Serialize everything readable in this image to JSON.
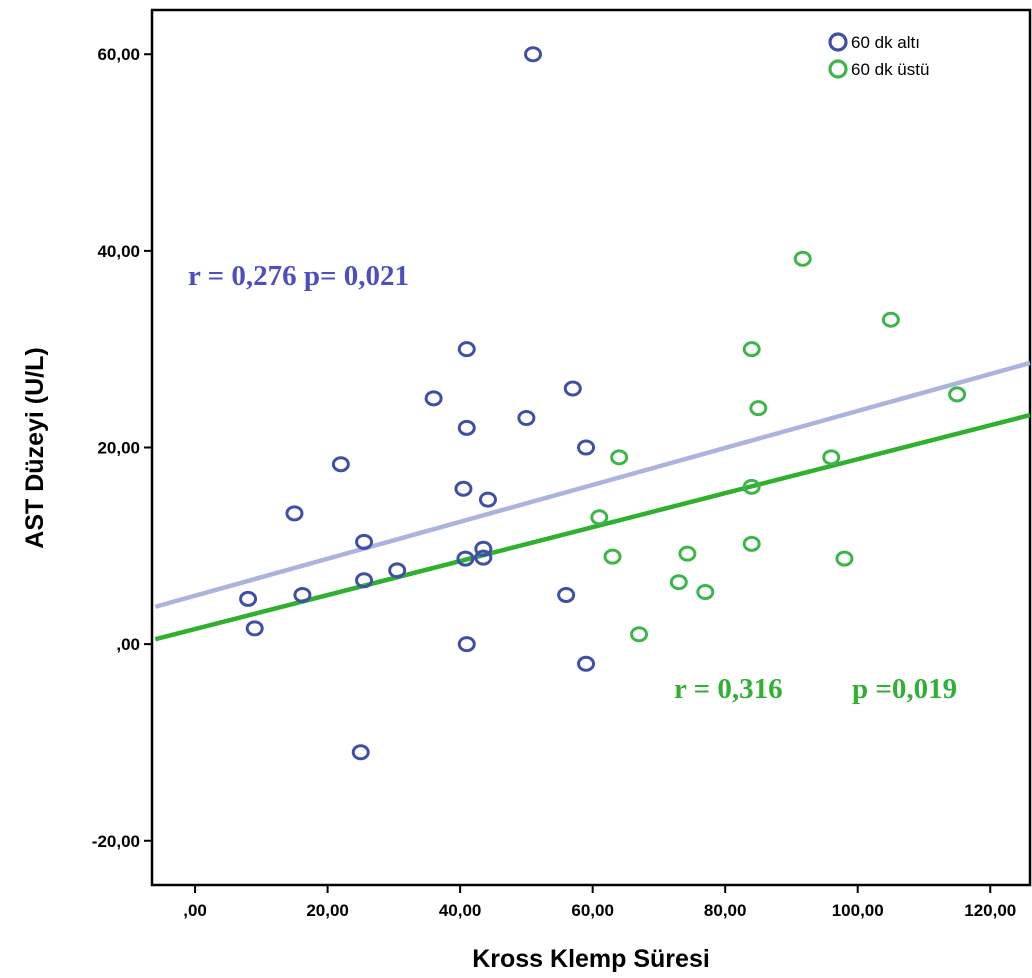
{
  "chart_data": {
    "type": "scatter",
    "xlabel": "Kross Klemp Süresi",
    "ylabel": "AST Düzeyi (U/L)",
    "xlim": [
      -6.5,
      126
    ],
    "ylim": [
      -24.5,
      64.5
    ],
    "x_ticks": [
      0,
      20,
      40,
      60,
      80,
      100,
      120
    ],
    "x_tick_labels": [
      ",00",
      "20,00",
      "40,00",
      "60,00",
      "80,00",
      "100,00",
      "120,00"
    ],
    "y_ticks": [
      -20,
      0,
      20,
      40,
      60
    ],
    "y_tick_labels": [
      "-20,00",
      ",00",
      "20,00",
      "40,00",
      "60,00"
    ],
    "grid": false,
    "legend_position": "top-right",
    "series": [
      {
        "name": "60 dk altı",
        "color": "#3f4fa5",
        "marker": "open-circle",
        "points": [
          [
            8,
            4.6
          ],
          [
            9,
            1.6
          ],
          [
            15,
            13.3
          ],
          [
            16.2,
            5
          ],
          [
            22,
            18.3
          ],
          [
            25,
            -11
          ],
          [
            25.5,
            10.4
          ],
          [
            25.5,
            6.5
          ],
          [
            30.5,
            7.5
          ],
          [
            36,
            25
          ],
          [
            40.5,
            15.8
          ],
          [
            40.8,
            8.7
          ],
          [
            41,
            0
          ],
          [
            41,
            30
          ],
          [
            41,
            22
          ],
          [
            43.5,
            9.7
          ],
          [
            43.5,
            8.8
          ],
          [
            44.2,
            14.7
          ],
          [
            50,
            23
          ],
          [
            51,
            60
          ],
          [
            56,
            5
          ],
          [
            57,
            26
          ],
          [
            59,
            20
          ],
          [
            59,
            -2
          ]
        ],
        "fit_line": {
          "x": [
            -6,
            126
          ],
          "y": [
            3.8,
            28.6
          ],
          "color": "#aab4dc"
        },
        "annotation": "r = 0,276  p= 0,021",
        "annotation_color": "#4d4fc0"
      },
      {
        "name": "60 dk üstü",
        "color": "#3cb54a",
        "marker": "open-circle",
        "points": [
          [
            61,
            12.9
          ],
          [
            63,
            8.9
          ],
          [
            64,
            19
          ],
          [
            67,
            1
          ],
          [
            73,
            6.3
          ],
          [
            74.3,
            9.2
          ],
          [
            77,
            5.3
          ],
          [
            84,
            30
          ],
          [
            84,
            16
          ],
          [
            84,
            10.2
          ],
          [
            85,
            24
          ],
          [
            91.7,
            39.2
          ],
          [
            96,
            19
          ],
          [
            98,
            8.7
          ],
          [
            105,
            33
          ],
          [
            115,
            25.4
          ]
        ],
        "fit_line": {
          "x": [
            -6,
            126
          ],
          "y": [
            0.5,
            23.3
          ],
          "color": "#2fb02f"
        },
        "annotation": "r = 0,316",
        "annotation_p": "p =0,019",
        "annotation_color": "#31b035"
      }
    ]
  }
}
